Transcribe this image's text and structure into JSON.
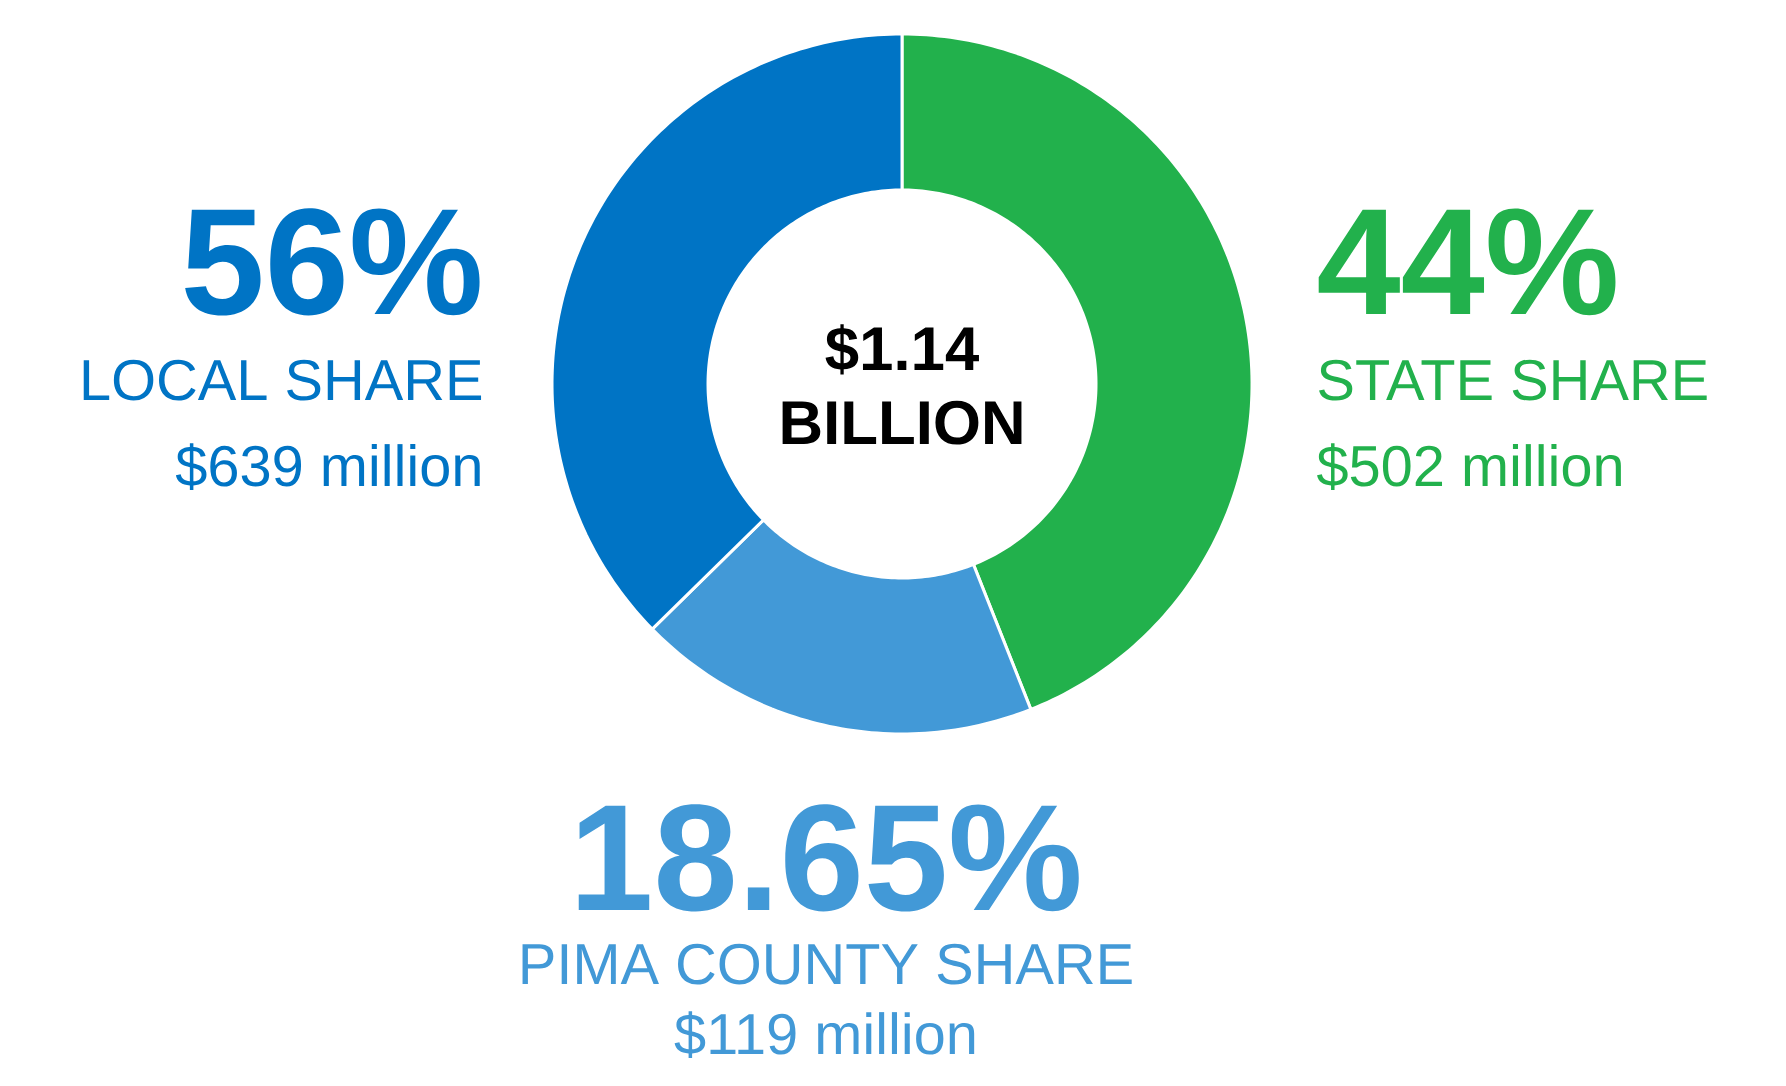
{
  "chart_data": {
    "type": "donut",
    "categories": [
      "STATE SHARE",
      "PIMA COUNTY SHARE",
      null
    ],
    "values": [
      44,
      18.65,
      37.35
    ],
    "colors": [
      "#22b14c",
      "#4299d7",
      "#0074c5"
    ],
    "value_labels": [
      "44%",
      "18.65%",
      null
    ],
    "annotations": [
      "$1.14",
      "BILLION",
      "56%",
      "LOCAL SHARE",
      "$639 million",
      "$502 million",
      "$119 million"
    ]
  }
}
